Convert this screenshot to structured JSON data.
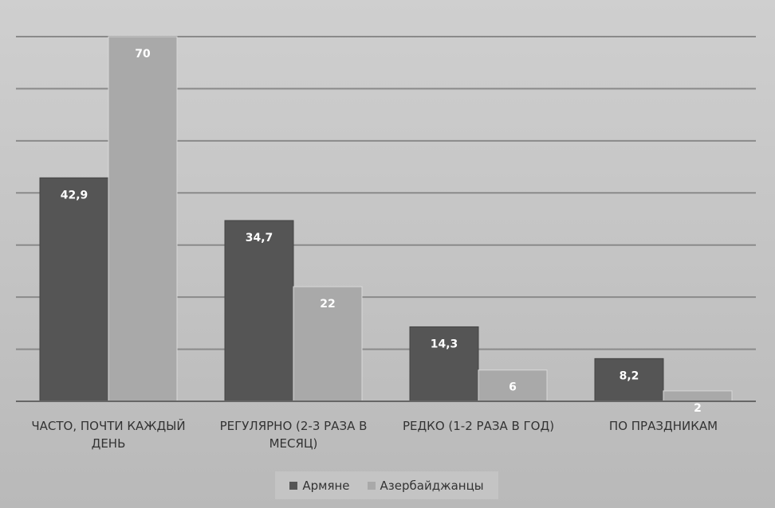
{
  "chart_data": {
    "type": "bar",
    "categories": [
      "ЧАСТО, ПОЧТИ КАЖДЫЙ ДЕНЬ",
      "РЕГУЛЯРНО (2-3 РАЗА В МЕСЯЦ)",
      "РЕДКО (1-2 РАЗА В ГОД)",
      "ПО ПРАЗДНИКАМ"
    ],
    "series": [
      {
        "name": "Армяне",
        "color": "#555555",
        "values": [
          42.9,
          34.7,
          14.3,
          8.2
        ],
        "value_labels": [
          "42,9",
          "34,7",
          "14,3",
          "8,2"
        ]
      },
      {
        "name": "Азербайджанцы",
        "color": "#a9a9a9",
        "values": [
          70,
          22,
          6,
          2
        ],
        "value_labels": [
          "70",
          "22",
          "6",
          "2"
        ]
      }
    ],
    "ylim": [
      0,
      70
    ],
    "yticks": [
      0,
      10,
      20,
      30,
      40,
      50,
      60,
      70
    ],
    "grid": true,
    "legend": "bottom"
  }
}
